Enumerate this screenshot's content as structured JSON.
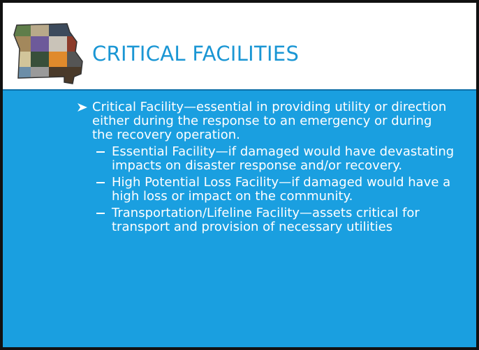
{
  "header": {
    "title": "CRITICAL FACILITIES"
  },
  "body": {
    "bullet": "Critical Facility—essential in providing utility or direction either during the response to an emergency or during the recovery operation.",
    "subitems": [
      "Essential Facility—if damaged would have devastating impacts on disaster response and/or recovery.",
      "High Potential Loss Facility—if damaged would have a high loss or impact on the community.",
      "Transportation/Lifeline Facility—assets critical for transport and provision of necessary utilities"
    ]
  }
}
